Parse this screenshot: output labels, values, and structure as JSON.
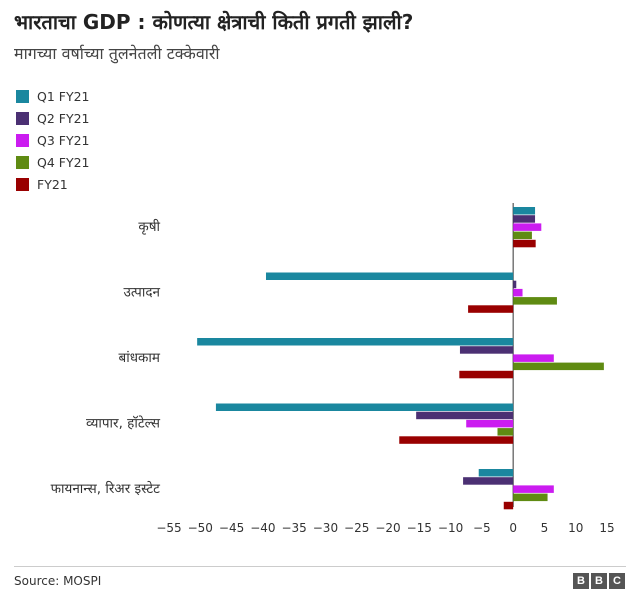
{
  "header": {
    "title": "भारताचा GDP : कोणत्या क्षेत्राची किती प्रगती झाली?",
    "subtitle": "मागच्या वर्षाच्या तुलनेतली टक्केवारी"
  },
  "footer": {
    "source": "Source: MOSPI",
    "logo_letters": [
      "B",
      "B",
      "C"
    ]
  },
  "colors": {
    "Q1 FY21": "#1a879f",
    "Q2 FY21": "#4b3073",
    "Q3 FY21": "#cb1cf0",
    "Q4 FY21": "#5f8b12",
    "FY21": "#990000"
  },
  "chart_data": {
    "type": "bar",
    "orientation": "horizontal",
    "title": "भारताचा GDP : कोणत्या क्षेत्राची किती प्रगती झाली?",
    "subtitle": "मागच्या वर्षाच्या तुलनेतली टक्केवारी",
    "xlim": [
      -55,
      15
    ],
    "xticks": [
      -55,
      -50,
      -45,
      -40,
      -35,
      -30,
      -25,
      -20,
      -15,
      -10,
      -5,
      0,
      5,
      10,
      15
    ],
    "grid": false,
    "legend_position": "top-left",
    "categories": [
      "कृषी",
      "उत्पादन",
      "बांधकाम",
      "व्यापार, हॉटेल्स",
      "फायनान्स, रिअर इस्टेट"
    ],
    "series": [
      {
        "name": "Q1 FY21",
        "values": [
          3.5,
          -39.5,
          -50.5,
          -47.5,
          -5.5
        ]
      },
      {
        "name": "Q2 FY21",
        "values": [
          3.5,
          0.5,
          -8.5,
          -15.5,
          -8.0
        ]
      },
      {
        "name": "Q3 FY21",
        "values": [
          4.5,
          1.5,
          6.5,
          -7.5,
          6.5
        ]
      },
      {
        "name": "Q4 FY21",
        "values": [
          3.0,
          7.0,
          14.5,
          -2.5,
          5.5
        ]
      },
      {
        "name": "FY21",
        "values": [
          3.6,
          -7.2,
          -8.6,
          -18.2,
          -1.5
        ]
      }
    ]
  }
}
